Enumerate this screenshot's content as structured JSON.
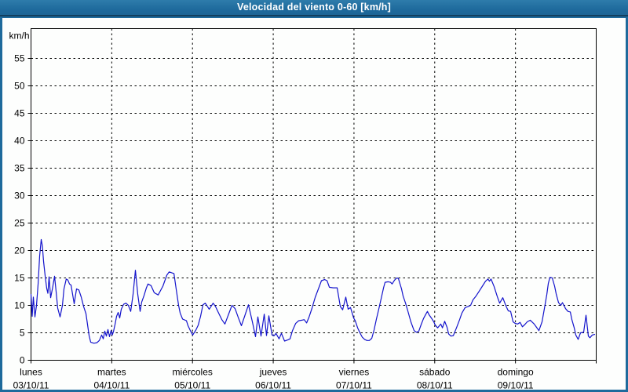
{
  "window": {
    "title": "Velocidad del viento 0-60 [km/h]"
  },
  "colors": {
    "titlebar_bg": "#1f6b9d",
    "titlebar_bg_light": "#2e7cab",
    "titlebar_edge": "#123f5e",
    "window_border": "#1e6a9c",
    "background": "#fdfefd",
    "line": "#1414cc",
    "grid": "#000000",
    "text": "#000000"
  },
  "chart_data": {
    "type": "line",
    "title": "Velocidad del viento 0-60 [km/h]",
    "ylabel": "km/h",
    "ylim": [
      0,
      60
    ],
    "yticks": [
      0,
      5,
      10,
      15,
      20,
      25,
      30,
      35,
      40,
      45,
      50,
      55
    ],
    "grid": "dashed",
    "legend": "none",
    "x_axis": {
      "unit": "days",
      "categories": [
        {
          "name": "lunes",
          "date": "03/10/11"
        },
        {
          "name": "martes",
          "date": "04/10/11"
        },
        {
          "name": "miércoles",
          "date": "05/10/11"
        },
        {
          "name": "jueves",
          "date": "06/10/11"
        },
        {
          "name": "viernes",
          "date": "07/10/11"
        },
        {
          "name": "sábado",
          "date": "08/10/11"
        },
        {
          "name": "domingo",
          "date": "09/10/11"
        }
      ]
    },
    "series": [
      {
        "name": "velocidad del viento (km/h)",
        "color": "#1414cc",
        "points": [
          [
            0.0,
            12.0
          ],
          [
            0.015,
            8.0
          ],
          [
            0.029,
            11.5
          ],
          [
            0.049,
            7.9
          ],
          [
            0.068,
            10.0
          ],
          [
            0.088,
            14.0
          ],
          [
            0.107,
            19.0
          ],
          [
            0.126,
            22.0
          ],
          [
            0.141,
            20.8
          ],
          [
            0.156,
            18.0
          ],
          [
            0.175,
            15.4
          ],
          [
            0.194,
            13.1
          ],
          [
            0.209,
            12.2
          ],
          [
            0.224,
            15.2
          ],
          [
            0.243,
            11.4
          ],
          [
            0.267,
            13.2
          ],
          [
            0.292,
            15.3
          ],
          [
            0.311,
            12.5
          ],
          [
            0.331,
            9.5
          ],
          [
            0.36,
            7.9
          ],
          [
            0.389,
            10.0
          ],
          [
            0.408,
            13.0
          ],
          [
            0.437,
            14.8
          ],
          [
            0.457,
            14.6
          ],
          [
            0.476,
            13.9
          ],
          [
            0.496,
            13.7
          ],
          [
            0.535,
            10.3
          ],
          [
            0.564,
            13.0
          ],
          [
            0.593,
            12.8
          ],
          [
            0.622,
            11.5
          ],
          [
            0.651,
            9.8
          ],
          [
            0.681,
            8.5
          ],
          [
            0.7,
            6.5
          ],
          [
            0.719,
            4.5
          ],
          [
            0.739,
            3.3
          ],
          [
            0.778,
            3.1
          ],
          [
            0.817,
            3.2
          ],
          [
            0.846,
            3.6
          ],
          [
            0.875,
            4.6
          ],
          [
            0.894,
            3.9
          ],
          [
            0.914,
            5.3
          ],
          [
            0.933,
            4.4
          ],
          [
            0.953,
            5.6
          ],
          [
            0.972,
            4.3
          ],
          [
            0.992,
            5.4
          ],
          [
            1.006,
            4.6
          ],
          [
            1.021,
            5.2
          ],
          [
            1.04,
            6.5
          ],
          [
            1.06,
            8.0
          ],
          [
            1.079,
            8.7
          ],
          [
            1.099,
            7.7
          ],
          [
            1.118,
            9.3
          ],
          [
            1.147,
            10.2
          ],
          [
            1.176,
            10.4
          ],
          [
            1.206,
            10.0
          ],
          [
            1.235,
            8.9
          ],
          [
            1.264,
            12.0
          ],
          [
            1.293,
            16.4
          ],
          [
            1.322,
            12.0
          ],
          [
            1.351,
            8.9
          ],
          [
            1.371,
            10.6
          ],
          [
            1.4,
            11.8
          ],
          [
            1.429,
            13.2
          ],
          [
            1.449,
            13.9
          ],
          [
            1.487,
            13.6
          ],
          [
            1.526,
            12.3
          ],
          [
            1.575,
            11.9
          ],
          [
            1.633,
            13.5
          ],
          [
            1.682,
            15.5
          ],
          [
            1.711,
            16.1
          ],
          [
            1.77,
            15.8
          ],
          [
            1.799,
            12.9
          ],
          [
            1.828,
            10.0
          ],
          [
            1.847,
            8.6
          ],
          [
            1.877,
            7.5
          ],
          [
            1.925,
            7.2
          ],
          [
            1.944,
            6.3
          ],
          [
            1.974,
            5.4
          ],
          [
            2.003,
            4.6
          ],
          [
            2.042,
            5.5
          ],
          [
            2.071,
            6.4
          ],
          [
            2.1,
            8.0
          ],
          [
            2.129,
            10.1
          ],
          [
            2.158,
            10.4
          ],
          [
            2.207,
            9.3
          ],
          [
            2.256,
            10.4
          ],
          [
            2.285,
            9.8
          ],
          [
            2.314,
            8.9
          ],
          [
            2.363,
            7.4
          ],
          [
            2.401,
            6.6
          ],
          [
            2.45,
            8.5
          ],
          [
            2.489,
            10.0
          ],
          [
            2.528,
            9.4
          ],
          [
            2.567,
            7.8
          ],
          [
            2.606,
            6.3
          ],
          [
            2.645,
            8.0
          ],
          [
            2.693,
            10.1
          ],
          [
            2.742,
            7.0
          ],
          [
            2.781,
            4.3
          ],
          [
            2.81,
            7.9
          ],
          [
            2.849,
            4.4
          ],
          [
            2.888,
            8.4
          ],
          [
            2.917,
            4.5
          ],
          [
            2.946,
            8.1
          ],
          [
            2.985,
            4.6
          ],
          [
            3.014,
            4.5
          ],
          [
            3.033,
            4.9
          ],
          [
            3.072,
            3.9
          ],
          [
            3.101,
            4.9
          ],
          [
            3.14,
            3.5
          ],
          [
            3.179,
            3.7
          ],
          [
            3.208,
            3.9
          ],
          [
            3.238,
            5.4
          ],
          [
            3.277,
            6.7
          ],
          [
            3.315,
            7.2
          ],
          [
            3.354,
            7.3
          ],
          [
            3.383,
            7.4
          ],
          [
            3.413,
            6.8
          ],
          [
            3.442,
            7.8
          ],
          [
            3.481,
            9.5
          ],
          [
            3.52,
            11.5
          ],
          [
            3.559,
            13.0
          ],
          [
            3.597,
            14.5
          ],
          [
            3.636,
            14.7
          ],
          [
            3.666,
            14.5
          ],
          [
            3.695,
            13.3
          ],
          [
            3.743,
            13.2
          ],
          [
            3.792,
            13.2
          ],
          [
            3.831,
            9.8
          ],
          [
            3.86,
            9.2
          ],
          [
            3.899,
            11.5
          ],
          [
            3.928,
            9.3
          ],
          [
            3.957,
            9.6
          ],
          [
            3.996,
            7.7
          ],
          [
            4.015,
            7.2
          ],
          [
            4.045,
            5.9
          ],
          [
            4.074,
            5.0
          ],
          [
            4.103,
            4.2
          ],
          [
            4.132,
            3.8
          ],
          [
            4.161,
            3.6
          ],
          [
            4.19,
            3.6
          ],
          [
            4.22,
            4.0
          ],
          [
            4.249,
            5.5
          ],
          [
            4.278,
            7.5
          ],
          [
            4.307,
            9.3
          ],
          [
            4.336,
            11.2
          ],
          [
            4.366,
            13.2
          ],
          [
            4.385,
            14.2
          ],
          [
            4.424,
            14.3
          ],
          [
            4.453,
            14.2
          ],
          [
            4.472,
            13.9
          ],
          [
            4.502,
            14.6
          ],
          [
            4.531,
            15.0
          ],
          [
            4.55,
            14.9
          ],
          [
            4.589,
            13.0
          ],
          [
            4.608,
            11.7
          ],
          [
            4.638,
            10.4
          ],
          [
            4.667,
            9.0
          ],
          [
            4.705,
            7.0
          ],
          [
            4.744,
            5.4
          ],
          [
            4.774,
            5.1
          ],
          [
            4.803,
            5.3
          ],
          [
            4.832,
            6.5
          ],
          [
            4.861,
            7.6
          ],
          [
            4.89,
            8.4
          ],
          [
            4.91,
            8.9
          ],
          [
            4.929,
            8.3
          ],
          [
            4.958,
            7.7
          ],
          [
            4.988,
            7.0
          ],
          [
            5.007,
            6.4
          ],
          [
            5.036,
            5.9
          ],
          [
            5.075,
            6.6
          ],
          [
            5.095,
            5.9
          ],
          [
            5.124,
            7.1
          ],
          [
            5.153,
            6.0
          ],
          [
            5.172,
            4.8
          ],
          [
            5.201,
            4.4
          ],
          [
            5.231,
            4.5
          ],
          [
            5.269,
            5.9
          ],
          [
            5.308,
            7.4
          ],
          [
            5.337,
            8.6
          ],
          [
            5.376,
            9.6
          ],
          [
            5.415,
            9.8
          ],
          [
            5.444,
            10.0
          ],
          [
            5.474,
            11.0
          ],
          [
            5.512,
            11.7
          ],
          [
            5.551,
            12.6
          ],
          [
            5.59,
            13.5
          ],
          [
            5.629,
            14.4
          ],
          [
            5.659,
            14.8
          ],
          [
            5.678,
            14.4
          ],
          [
            5.697,
            14.8
          ],
          [
            5.736,
            13.4
          ],
          [
            5.775,
            11.6
          ],
          [
            5.804,
            10.4
          ],
          [
            5.843,
            11.4
          ],
          [
            5.882,
            9.9
          ],
          [
            5.911,
            9.0
          ],
          [
            5.94,
            8.9
          ],
          [
            5.97,
            7.0
          ],
          [
            5.999,
            6.7
          ],
          [
            6.028,
            6.6
          ],
          [
            6.057,
            6.9
          ],
          [
            6.086,
            6.1
          ],
          [
            6.115,
            6.5
          ],
          [
            6.145,
            7.0
          ],
          [
            6.183,
            7.3
          ],
          [
            6.232,
            6.6
          ],
          [
            6.261,
            6.0
          ],
          [
            6.29,
            5.4
          ],
          [
            6.329,
            7.0
          ],
          [
            6.359,
            9.5
          ],
          [
            6.388,
            12.0
          ],
          [
            6.407,
            14.0
          ],
          [
            6.426,
            15.1
          ],
          [
            6.456,
            15.0
          ],
          [
            6.485,
            13.5
          ],
          [
            6.504,
            12.1
          ],
          [
            6.533,
            10.5
          ],
          [
            6.562,
            10.0
          ],
          [
            6.582,
            10.5
          ],
          [
            6.621,
            9.4
          ],
          [
            6.65,
            8.9
          ],
          [
            6.679,
            8.8
          ],
          [
            6.699,
            7.4
          ],
          [
            6.728,
            5.9
          ],
          [
            6.747,
            4.6
          ],
          [
            6.776,
            3.8
          ],
          [
            6.806,
            5.0
          ],
          [
            6.844,
            5.1
          ],
          [
            6.874,
            8.2
          ],
          [
            6.903,
            4.4
          ],
          [
            6.922,
            4.1
          ],
          [
            6.951,
            4.6
          ],
          [
            6.981,
            4.7
          ]
        ]
      }
    ]
  }
}
